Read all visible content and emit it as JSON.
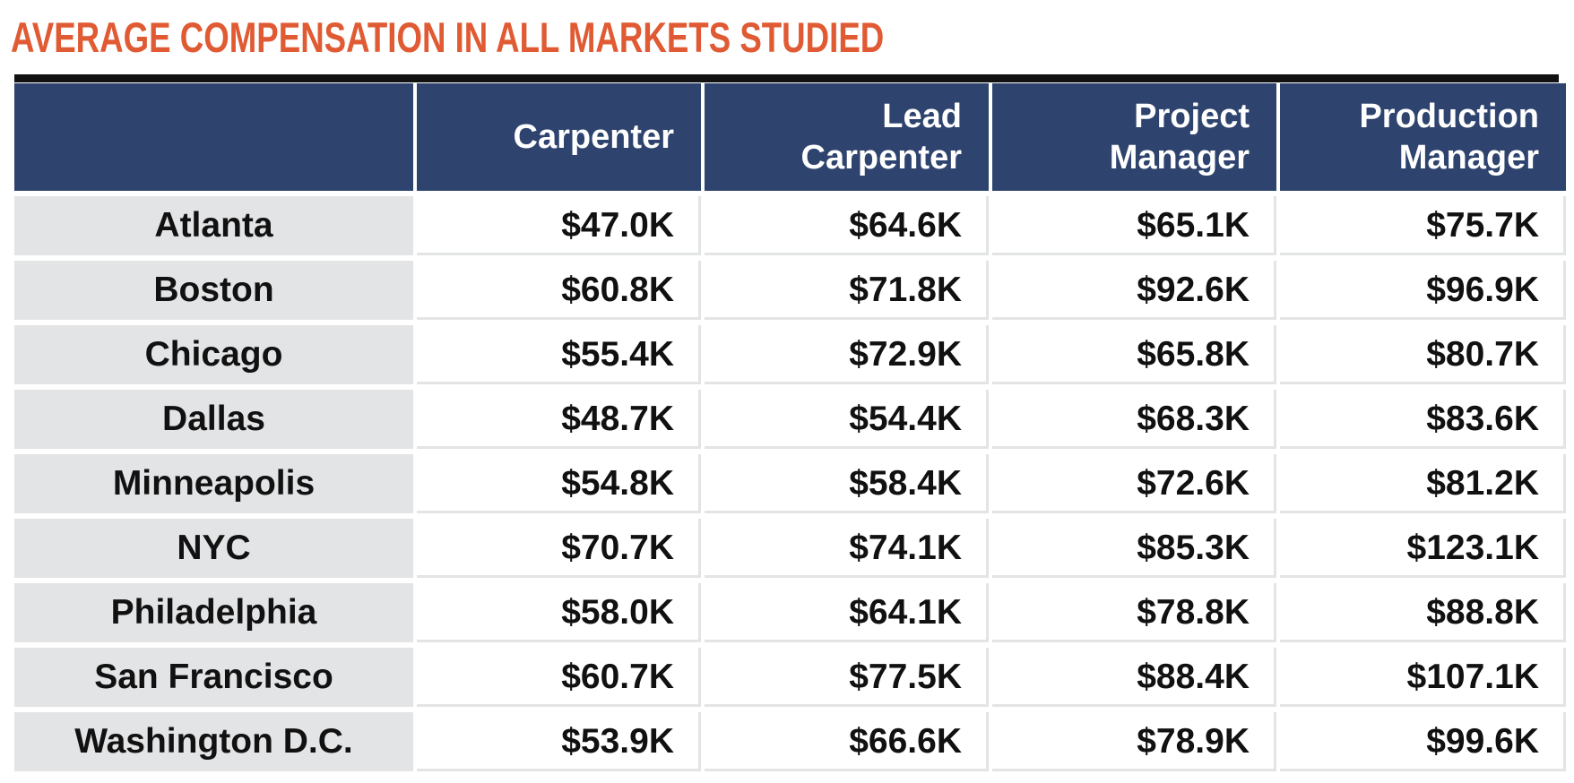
{
  "title": "AVERAGE COMPENSATION IN ALL MARKETS STUDIED",
  "colors": {
    "title": "#e05a33",
    "header_bg": "#2e446e",
    "city_bg": "#e3e4e6",
    "rule": "#111111"
  },
  "chart_data": {
    "type": "table",
    "title": "AVERAGE COMPENSATION IN ALL MARKETS STUDIED",
    "columns": [
      "",
      "Carpenter",
      "Lead Carpenter",
      "Project Manager",
      "Production Manager"
    ],
    "rows": [
      {
        "city": "Atlanta",
        "values": [
          "$47.0K",
          "$64.6K",
          "$65.1K",
          "$75.7K"
        ]
      },
      {
        "city": "Boston",
        "values": [
          "$60.8K",
          "$71.8K",
          "$92.6K",
          "$96.9K"
        ]
      },
      {
        "city": "Chicago",
        "values": [
          "$55.4K",
          "$72.9K",
          "$65.8K",
          "$80.7K"
        ]
      },
      {
        "city": "Dallas",
        "values": [
          "$48.7K",
          "$54.4K",
          "$68.3K",
          "$83.6K"
        ]
      },
      {
        "city": "Minneapolis",
        "values": [
          "$54.8K",
          "$58.4K",
          "$72.6K",
          "$81.2K"
        ]
      },
      {
        "city": "NYC",
        "values": [
          "$70.7K",
          "$74.1K",
          "$85.3K",
          "$123.1K"
        ]
      },
      {
        "city": "Philadelphia",
        "values": [
          "$58.0K",
          "$64.1K",
          "$78.8K",
          "$88.8K"
        ]
      },
      {
        "city": "San Francisco",
        "values": [
          "$60.7K",
          "$77.5K",
          "$88.4K",
          "$107.1K"
        ]
      },
      {
        "city": "Washington D.C.",
        "values": [
          "$53.9K",
          "$66.6K",
          "$78.9K",
          "$99.6K"
        ]
      }
    ]
  }
}
